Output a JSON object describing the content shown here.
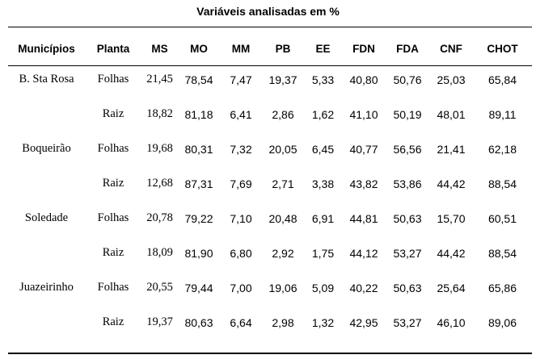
{
  "table": {
    "caption": "Variáveis analisadas em %",
    "headers": [
      "Municípios",
      "Planta",
      "MS",
      "MO",
      "MM",
      "PB",
      "EE",
      "FDN",
      "FDA",
      "CNF",
      "CHOT"
    ],
    "rows": [
      [
        "B. Sta Rosa",
        "Folhas",
        "21,45",
        "78,54",
        "7,47",
        "19,37",
        "5,33",
        "40,80",
        "50,76",
        "25,03",
        "65,84"
      ],
      [
        "",
        "Raiz",
        "18,82",
        "81,18",
        "6,41",
        "2,86",
        "1,62",
        "41,10",
        "50,19",
        "48,01",
        "89,11"
      ],
      [
        "Boqueirão",
        "Folhas",
        "19,68",
        "80,31",
        "7,32",
        "20,05",
        "6,45",
        "40,77",
        "56,56",
        "21,41",
        "62,18"
      ],
      [
        "",
        "Raiz",
        "12,68",
        "87,31",
        "7,69",
        "2,71",
        "3,38",
        "43,82",
        "53,86",
        "44,42",
        "88,54"
      ],
      [
        "Soledade",
        "Folhas",
        "20,78",
        "79,22",
        "7,10",
        "20,48",
        "6,91",
        "44,81",
        "50,63",
        "15,70",
        "60,51"
      ],
      [
        "",
        "Raiz",
        "18,09",
        "81,90",
        "6,80",
        "2,92",
        "1,75",
        "44,12",
        "53,27",
        "44,42",
        "88,54"
      ],
      [
        "Juazeirinho",
        "Folhas",
        "20,55",
        "79,44",
        "7,00",
        "19,06",
        "5,09",
        "40,22",
        "50,63",
        "25,64",
        "65,86"
      ],
      [
        "",
        "Raiz",
        "19,37",
        "80,63",
        "6,64",
        "2,98",
        "1,32",
        "42,95",
        "53,27",
        "46,10",
        "89,06"
      ]
    ]
  }
}
